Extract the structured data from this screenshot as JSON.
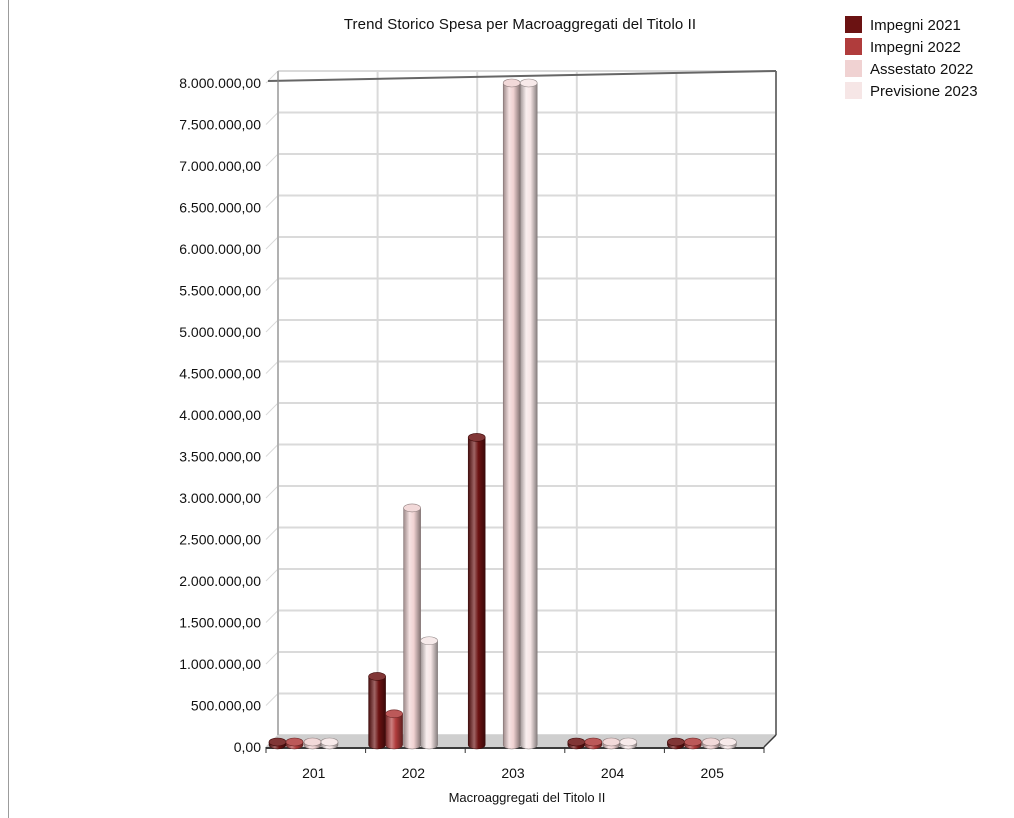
{
  "chart_data": {
    "type": "bar",
    "title": "Trend Storico Spesa per Macroaggregati del Titolo II",
    "xlabel": "Macroaggregati del Titolo II",
    "ylabel": "",
    "categories": [
      "201",
      "202",
      "203",
      "204",
      "205"
    ],
    "yticks": [
      "0,00",
      "500.000,00",
      "1.000.000,00",
      "1.500.000,00",
      "2.000.000,00",
      "2.500.000,00",
      "3.000.000,00",
      "3.500.000,00",
      "4.000.000,00",
      "4.500.000,00",
      "5.000.000,00",
      "5.500.000,00",
      "6.000.000,00",
      "6.500.000,00",
      "7.000.000,00",
      "7.500.000,00",
      "8.000.000,00"
    ],
    "ylim": [
      0,
      8000000
    ],
    "ytick_step": 500000,
    "grid": true,
    "legend_position": "top-right",
    "style": "3d-cylinder",
    "series": [
      {
        "name": "Impegni 2021",
        "color": "#6b1212",
        "values": [
          20000,
          850000,
          3730000,
          20000,
          20000
        ]
      },
      {
        "name": "Impegni 2022",
        "color": "#b03c3c",
        "values": [
          20000,
          400000,
          0,
          20000,
          20000
        ]
      },
      {
        "name": "Assestato 2022",
        "color": "#f0d2d2",
        "values": [
          20000,
          2880000,
          8000000,
          20000,
          20000
        ]
      },
      {
        "name": "Previsione 2023",
        "color": "#f6e6e6",
        "values": [
          20000,
          1280000,
          8000000,
          20000,
          20000
        ]
      }
    ]
  }
}
